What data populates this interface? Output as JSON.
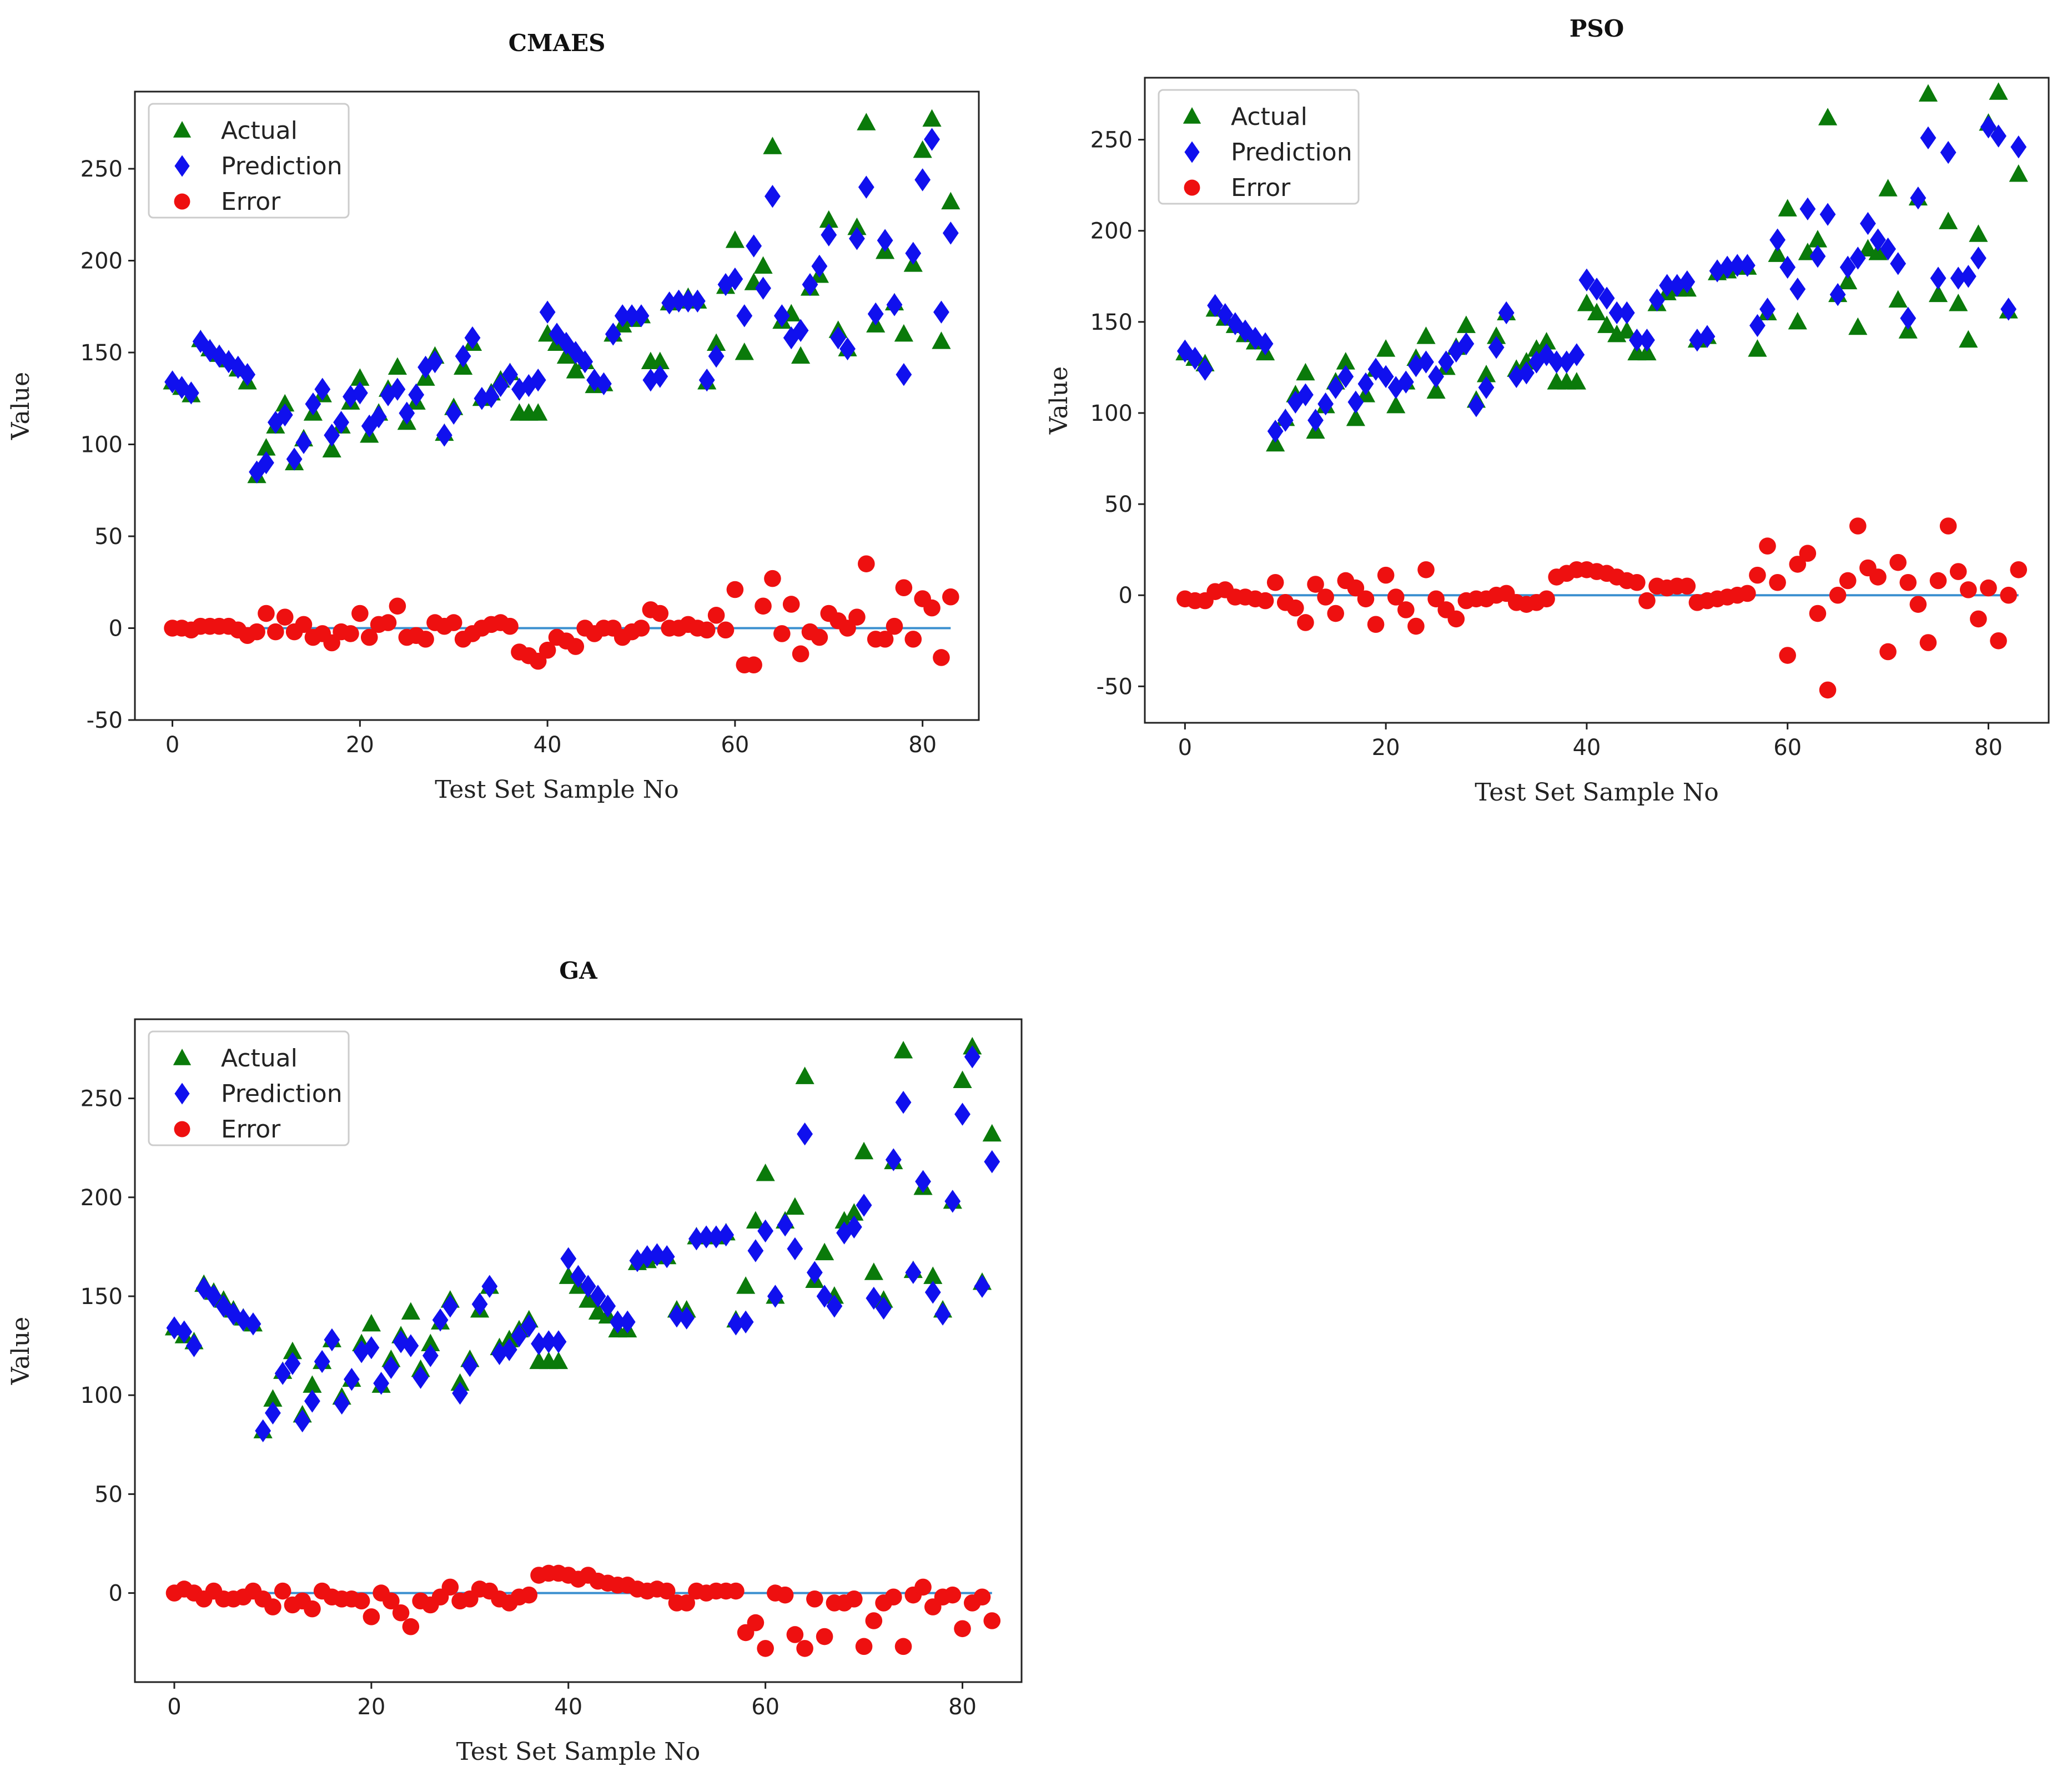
{
  "colors": {
    "actual": "#0a7a0a",
    "prediction": "#1010ee",
    "error": "#ee1010",
    "zero_line": "#3a8fcf"
  },
  "chart_data": [
    {
      "type": "scatter",
      "title": "CMAES",
      "xlabel": "Test Set Sample No",
      "ylabel": "Value",
      "xlim": [
        -4,
        86
      ],
      "ylim": [
        -50,
        292
      ],
      "xticks": [
        0,
        20,
        40,
        60,
        80
      ],
      "yticks": [
        -50,
        0,
        50,
        100,
        150,
        200,
        250
      ],
      "legend_position": "top-left",
      "series": [
        {
          "name": "Actual",
          "marker": "triangle",
          "values": [
            134,
            131,
            127,
            157,
            152,
            149,
            146,
            141,
            134,
            83,
            98,
            110,
            122,
            90,
            103,
            117,
            127,
            97,
            110,
            123,
            136,
            105,
            117,
            130,
            142,
            112,
            123,
            136,
            148,
            106,
            120,
            142,
            155,
            125,
            128,
            135,
            139,
            117,
            117,
            117,
            160,
            155,
            148,
            140,
            145,
            132,
            133,
            160,
            165,
            168,
            170,
            145,
            145,
            177,
            178,
            180,
            178,
            134,
            155,
            186,
            211,
            150,
            188,
            197,
            262,
            167,
            171,
            148,
            185,
            192,
            222,
            162,
            152,
            218,
            275,
            165,
            205,
            177,
            160,
            198,
            260,
            277,
            156,
            232
          ]
        },
        {
          "name": "Prediction",
          "marker": "diamond",
          "values": [
            134,
            131,
            128,
            156,
            151,
            148,
            145,
            142,
            138,
            85,
            90,
            112,
            116,
            92,
            101,
            122,
            130,
            105,
            112,
            126,
            128,
            110,
            115,
            127,
            130,
            117,
            127,
            142,
            145,
            105,
            117,
            148,
            158,
            125,
            126,
            132,
            138,
            130,
            132,
            135,
            172,
            160,
            155,
            150,
            145,
            135,
            133,
            160,
            170,
            170,
            170,
            135,
            137,
            177,
            178,
            178,
            178,
            135,
            148,
            187,
            190,
            170,
            208,
            185,
            235,
            170,
            158,
            162,
            187,
            197,
            214,
            158,
            152,
            212,
            240,
            171,
            211,
            176,
            138,
            204,
            244,
            266,
            172,
            215
          ]
        },
        {
          "name": "Error",
          "marker": "circle",
          "values": [
            0,
            0,
            -1,
            1,
            1,
            1,
            1,
            -1,
            -4,
            -2,
            8,
            -2,
            6,
            -2,
            2,
            -5,
            -3,
            -8,
            -2,
            -3,
            8,
            -5,
            2,
            3,
            12,
            -5,
            -4,
            -6,
            3,
            1,
            3,
            -6,
            -3,
            0,
            2,
            3,
            1,
            -13,
            -15,
            -18,
            -12,
            -5,
            -7,
            -10,
            0,
            -3,
            0,
            0,
            -5,
            -2,
            0,
            10,
            8,
            0,
            0,
            2,
            0,
            -1,
            7,
            -1,
            21,
            -20,
            -20,
            12,
            27,
            -3,
            13,
            -14,
            -2,
            -5,
            8,
            4,
            0,
            6,
            35,
            -6,
            -6,
            1,
            22,
            -6,
            16,
            11,
            -16,
            17
          ]
        }
      ]
    },
    {
      "type": "scatter",
      "title": "PSO",
      "xlabel": "Test Set Sample No",
      "ylabel": "Value",
      "xlim": [
        -4,
        86
      ],
      "ylim": [
        -70,
        284
      ],
      "xticks": [
        0,
        20,
        40,
        60,
        80
      ],
      "yticks": [
        -50,
        0,
        50,
        100,
        150,
        200,
        250
      ],
      "legend_position": "top-left",
      "series": [
        {
          "name": "Actual",
          "marker": "triangle",
          "values": [
            133,
            130,
            127,
            157,
            152,
            148,
            143,
            139,
            133,
            83,
            97,
            110,
            122,
            90,
            104,
            117,
            128,
            97,
            110,
            124,
            135,
            104,
            117,
            130,
            142,
            112,
            125,
            136,
            148,
            107,
            121,
            142,
            155,
            124,
            128,
            135,
            139,
            117,
            117,
            117,
            160,
            155,
            148,
            143,
            145,
            133,
            133,
            160,
            166,
            168,
            168,
            140,
            142,
            177,
            178,
            180,
            180,
            135,
            155,
            187,
            212,
            150,
            188,
            195,
            262,
            165,
            172,
            147,
            190,
            188,
            223,
            162,
            145,
            218,
            275,
            165,
            205,
            160,
            140,
            198,
            259,
            276,
            156,
            231
          ]
        },
        {
          "name": "Prediction",
          "marker": "diamond",
          "values": [
            134,
            130,
            124,
            159,
            154,
            149,
            145,
            141,
            138,
            90,
            96,
            106,
            110,
            96,
            105,
            114,
            120,
            106,
            116,
            124,
            120,
            114,
            117,
            126,
            128,
            120,
            128,
            134,
            138,
            104,
            114,
            136,
            155,
            120,
            122,
            128,
            132,
            128,
            128,
            132,
            173,
            168,
            163,
            155,
            155,
            140,
            140,
            162,
            170,
            170,
            172,
            140,
            142,
            178,
            180,
            181,
            181,
            148,
            157,
            195,
            180,
            168,
            212,
            186,
            209,
            165,
            180,
            185,
            204,
            195,
            190,
            182,
            152,
            218,
            251,
            174,
            243,
            174,
            175,
            185,
            257,
            252,
            157,
            246
          ]
        },
        {
          "name": "Error",
          "marker": "circle",
          "values": [
            -2,
            -3,
            -3,
            2,
            3,
            -1,
            -1,
            -2,
            -3,
            7,
            -4,
            -7,
            -15,
            6,
            -1,
            -10,
            8,
            4,
            -2,
            -16,
            11,
            -1,
            -8,
            -17,
            14,
            -2,
            -8,
            -13,
            -3,
            -2,
            -2,
            0,
            1,
            -4,
            -5,
            -4,
            -2,
            10,
            12,
            14,
            14,
            13,
            12,
            10,
            8,
            7,
            -3,
            5,
            4,
            5,
            5,
            -4,
            -3,
            -2,
            -1,
            0,
            1,
            11,
            27,
            7,
            -33,
            17,
            23,
            -10,
            -52,
            0,
            8,
            38,
            15,
            10,
            -31,
            18,
            7,
            -5,
            -26,
            8,
            38,
            13,
            3,
            -13,
            4,
            -25,
            0,
            14
          ]
        }
      ]
    },
    {
      "type": "scatter",
      "title": "GA",
      "xlabel": "Test Set Sample No",
      "ylabel": "Value",
      "xlim": [
        -4,
        86
      ],
      "ylim": [
        -45,
        290
      ],
      "xticks": [
        0,
        20,
        40,
        60,
        80
      ],
      "yticks": [
        0,
        50,
        100,
        150,
        200,
        250
      ],
      "legend_position": "top-left",
      "series": [
        {
          "name": "Actual",
          "marker": "triangle",
          "values": [
            134,
            130,
            127,
            156,
            152,
            148,
            143,
            139,
            136,
            82,
            98,
            112,
            122,
            90,
            105,
            117,
            128,
            99,
            108,
            126,
            136,
            105,
            118,
            130,
            142,
            113,
            126,
            137,
            148,
            106,
            118,
            143,
            155,
            124,
            128,
            133,
            138,
            117,
            117,
            117,
            160,
            155,
            148,
            142,
            140,
            133,
            133,
            167,
            168,
            170,
            170,
            143,
            143,
            180,
            180,
            180,
            182,
            138,
            155,
            188,
            212,
            150,
            188,
            195,
            261,
            158,
            172,
            150,
            188,
            192,
            223,
            162,
            148,
            218,
            274,
            163,
            205,
            160,
            143,
            198,
            259,
            276,
            157,
            232
          ]
        },
        {
          "name": "Prediction",
          "marker": "diamond",
          "values": [
            134,
            132,
            125,
            154,
            150,
            145,
            141,
            138,
            136,
            82,
            91,
            111,
            116,
            87,
            97,
            117,
            128,
            96,
            108,
            122,
            124,
            106,
            114,
            127,
            125,
            109,
            120,
            138,
            145,
            101,
            115,
            146,
            155,
            121,
            123,
            130,
            135,
            126,
            127,
            127,
            169,
            160,
            155,
            150,
            145,
            137,
            137,
            168,
            170,
            171,
            170,
            140,
            139,
            179,
            180,
            180,
            181,
            136,
            137,
            173,
            183,
            150,
            186,
            174,
            232,
            162,
            150,
            145,
            182,
            185,
            196,
            149,
            144,
            219,
            248,
            162,
            208,
            152,
            141,
            198,
            242,
            271,
            155,
            218
          ]
        },
        {
          "name": "Error",
          "marker": "circle",
          "values": [
            0,
            2,
            0,
            -3,
            1,
            -3,
            -3,
            -2,
            1,
            -3,
            -7,
            1,
            -6,
            -4,
            -8,
            1,
            -2,
            -3,
            -3,
            -4,
            -12,
            0,
            -4,
            -10,
            -17,
            -4,
            -6,
            -2,
            3,
            -4,
            -3,
            2,
            1,
            -3,
            -5,
            -2,
            -1,
            9,
            10,
            10,
            9,
            7,
            9,
            6,
            5,
            4,
            4,
            2,
            1,
            2,
            1,
            -5,
            -5,
            1,
            0,
            1,
            1,
            1,
            -20,
            -15,
            -28,
            0,
            -1,
            -21,
            -28,
            -3,
            -22,
            -5,
            -5,
            -3,
            -27,
            -14,
            -5,
            -2,
            -27,
            -1,
            3,
            -7,
            -2,
            -1,
            -18,
            -5,
            -2,
            -14
          ]
        }
      ]
    }
  ]
}
